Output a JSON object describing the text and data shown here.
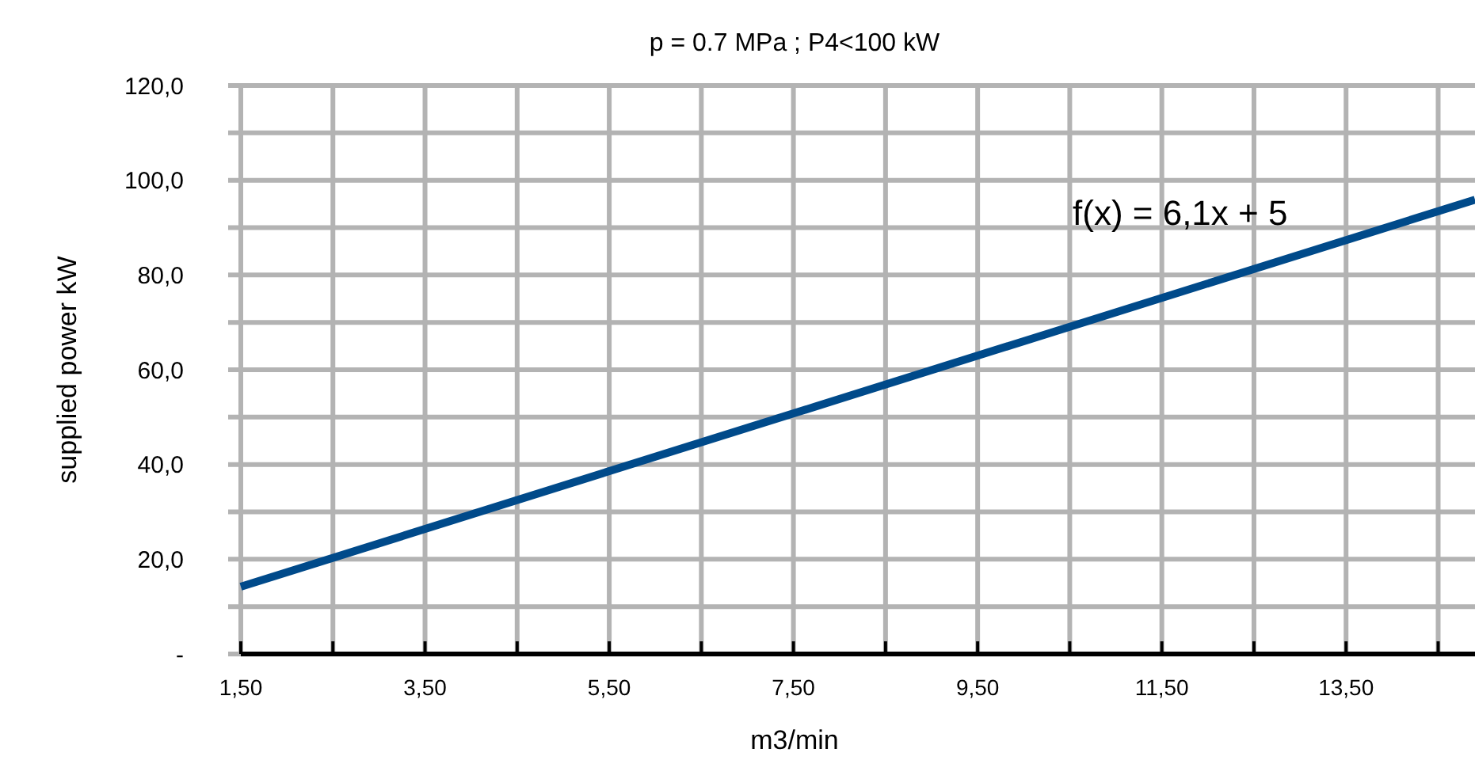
{
  "chart_data": {
    "type": "line",
    "title": "p = 0.7  MPa ; P4<100 kW",
    "xlabel": "m3/min",
    "ylabel": "supplied power kW",
    "x": [
      1.5,
      14.9
    ],
    "series": [
      {
        "color": "#004a8a",
        "values": [
          14.2,
          95.9
        ]
      }
    ],
    "xlim": [
      1.5,
      14.9
    ],
    "xticks": [
      {
        "value": 1.5,
        "label": "1,50"
      },
      {
        "value": 2.5,
        "label": null
      },
      {
        "value": 3.5,
        "label": "3,50"
      },
      {
        "value": 4.5,
        "label": null
      },
      {
        "value": 5.5,
        "label": "5,50"
      },
      {
        "value": 6.5,
        "label": null
      },
      {
        "value": 7.5,
        "label": "7,50"
      },
      {
        "value": 8.5,
        "label": null
      },
      {
        "value": 9.5,
        "label": "9,50"
      },
      {
        "value": 10.5,
        "label": null
      },
      {
        "value": 11.5,
        "label": "11,50"
      },
      {
        "value": 12.5,
        "label": null
      },
      {
        "value": 13.5,
        "label": "13,50"
      },
      {
        "value": 14.5,
        "label": null
      }
    ],
    "ylim": [
      0,
      120
    ],
    "yticks": [
      {
        "value": 0,
        "label": "-"
      },
      {
        "value": 10,
        "label": null
      },
      {
        "value": 20,
        "label": "20,0"
      },
      {
        "value": 30,
        "label": null
      },
      {
        "value": 40,
        "label": "40,0"
      },
      {
        "value": 50,
        "label": null
      },
      {
        "value": 60,
        "label": "60,0"
      },
      {
        "value": 70,
        "label": null
      },
      {
        "value": 80,
        "label": "80,0"
      },
      {
        "value": 90,
        "label": null
      },
      {
        "value": 100,
        "label": "100,0"
      },
      {
        "value": 110,
        "label": null
      },
      {
        "value": 120,
        "label": "120,0"
      }
    ],
    "grid": true,
    "marker": "none",
    "line_style": "solid",
    "annotations": [
      "f(x) = 6,1x + 5"
    ]
  }
}
